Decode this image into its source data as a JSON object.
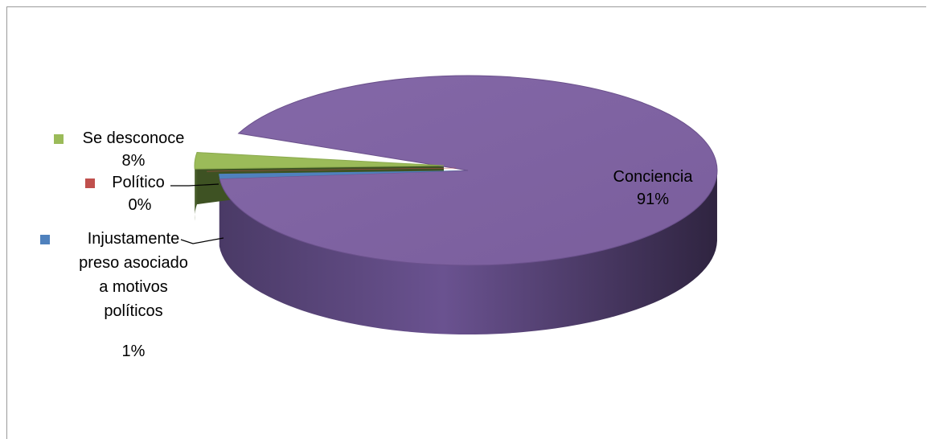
{
  "chart_data": {
    "type": "pie",
    "style": "3d",
    "title": "",
    "slices": [
      {
        "name": "Conciencia",
        "percent_label": "91%",
        "value": 91,
        "color": "#8064A2"
      },
      {
        "name": "Injustamente preso asociado a motivos políticos",
        "percent_label": "1%",
        "value": 1,
        "color": "#4F81BD"
      },
      {
        "name": "Político",
        "percent_label": "0%",
        "value": 0,
        "color": "#C0504D"
      },
      {
        "name": "Se desconoce",
        "percent_label": "8%",
        "value": 8,
        "color": "#9BBB59"
      }
    ],
    "legend": "none",
    "labels": "outside with legend keys, inside for largest slice"
  }
}
